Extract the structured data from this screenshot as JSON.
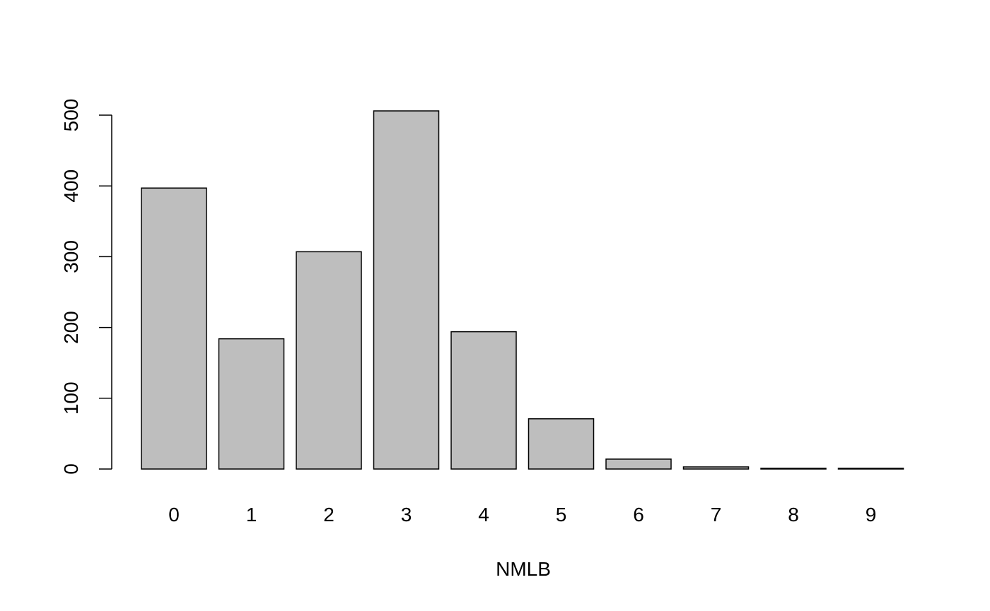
{
  "chart_data": {
    "type": "bar",
    "title": "",
    "xlabel": "NMLB",
    "ylabel": "",
    "categories": [
      "0",
      "1",
      "2",
      "3",
      "4",
      "5",
      "6",
      "7",
      "8",
      "9"
    ],
    "values": [
      397,
      184,
      307,
      506,
      194,
      71,
      14,
      3,
      1,
      1
    ],
    "ylim": [
      0,
      506
    ],
    "yticks": [
      0,
      100,
      200,
      300,
      400,
      500
    ],
    "grid": false,
    "legend": "none",
    "bar_fill": "#bebebe",
    "bar_stroke": "#000000"
  }
}
